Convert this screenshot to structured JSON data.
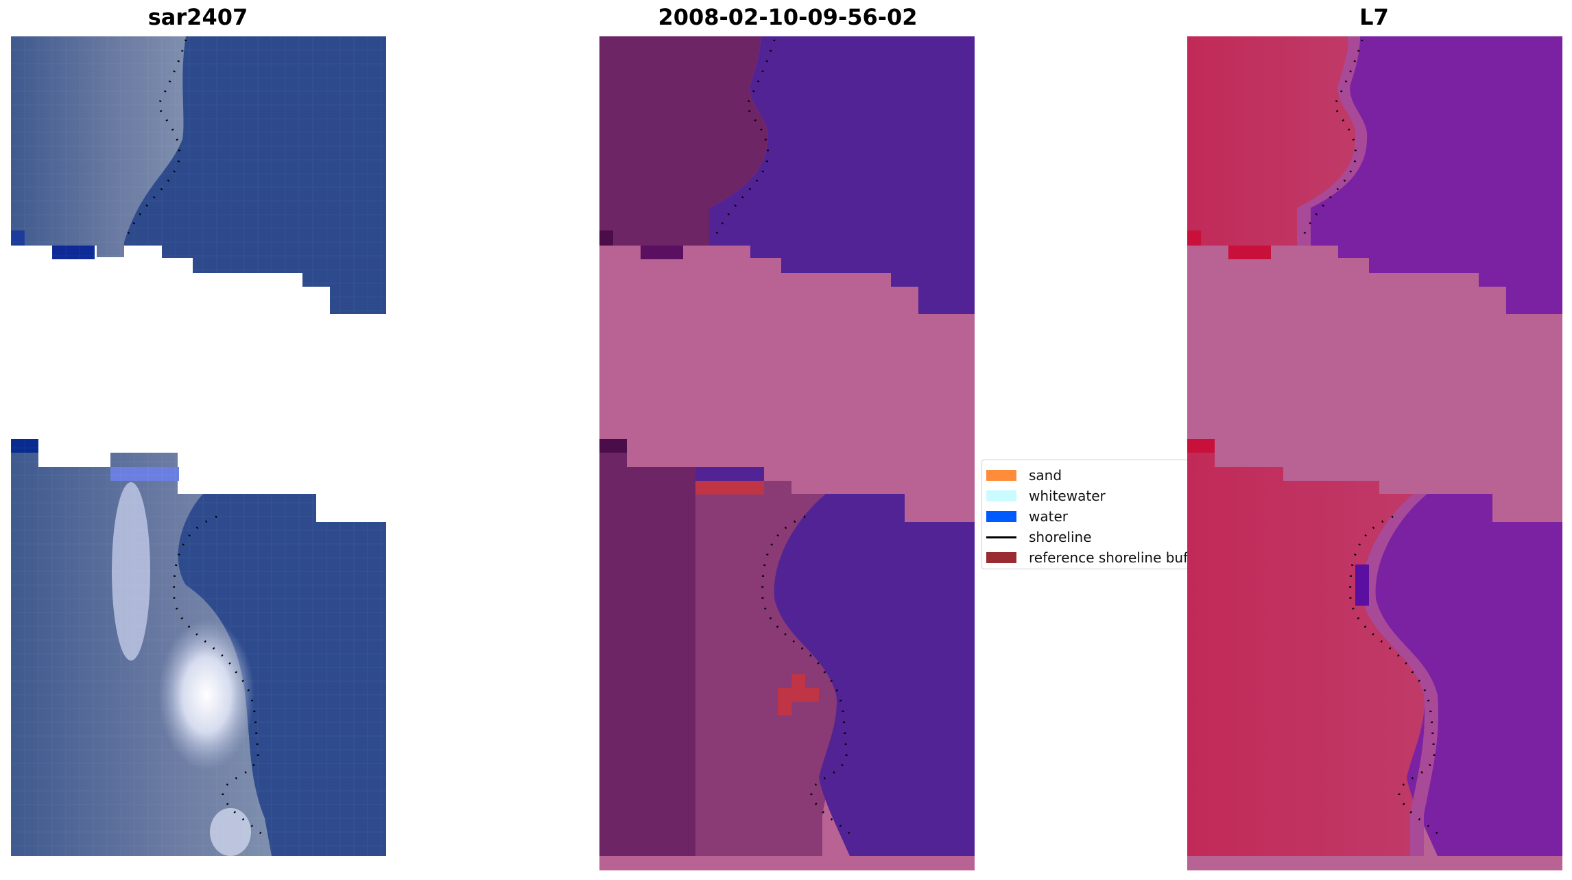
{
  "panels": [
    {
      "title": "sar2407"
    },
    {
      "title": "2008-02-10-09-56-02"
    },
    {
      "title": "L7"
    }
  ],
  "legend": {
    "items": [
      {
        "label": "sand",
        "color": "#ff8c3a"
      },
      {
        "label": "whitewater",
        "color": "#c9fbff"
      },
      {
        "label": "water",
        "color": "#005bff"
      },
      {
        "label": "shoreline",
        "color": "#000000"
      },
      {
        "label": "reference shoreline buffer",
        "color": "#9a2c31"
      }
    ]
  },
  "colors": {
    "rgb_water": "#2a4a8a",
    "rgb_land": "#5e6e9c",
    "classified_water": "#512394",
    "classified_land": "#6e2565",
    "classified_nodata": "#b96294",
    "ndwi_water": "#7a22a2",
    "ndwi_land": "#c42a5a",
    "ndwi_nodata": "#b96294"
  }
}
